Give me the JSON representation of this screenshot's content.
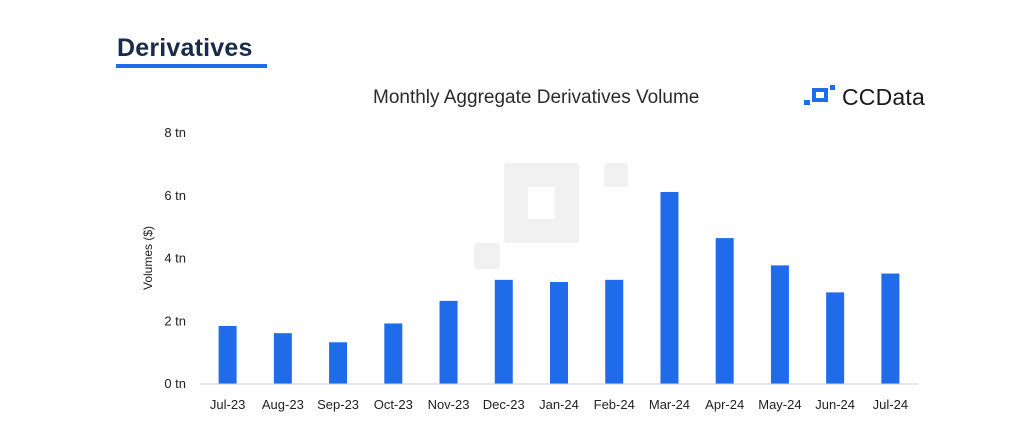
{
  "header": {
    "section_title": "Derivatives"
  },
  "brand": {
    "name": "CCData",
    "logo_icon": "ccdata-logo-icon",
    "color": "#1f6bea"
  },
  "chart_data": {
    "type": "bar",
    "title": "Monthly Aggregate Derivatives Volume",
    "xlabel": "",
    "ylabel": "Volumes ($)",
    "categories": [
      "Jul-23",
      "Aug-23",
      "Sep-23",
      "Oct-23",
      "Nov-23",
      "Dec-23",
      "Jan-24",
      "Feb-24",
      "Mar-24",
      "Apr-24",
      "May-24",
      "Jun-24",
      "Jul-24"
    ],
    "values": [
      1.85,
      1.62,
      1.33,
      1.93,
      2.65,
      3.32,
      3.25,
      3.32,
      6.12,
      4.65,
      3.78,
      2.92,
      3.52
    ],
    "unit": "tn",
    "ylim": [
      0,
      8
    ],
    "yticks": [
      0,
      2,
      4,
      6,
      8
    ],
    "ytick_labels": [
      "0 tn",
      "2 tn",
      "4 tn",
      "6 tn",
      "8 tn"
    ],
    "bar_color": "#1f6bea",
    "grid": false,
    "legend": "none"
  }
}
